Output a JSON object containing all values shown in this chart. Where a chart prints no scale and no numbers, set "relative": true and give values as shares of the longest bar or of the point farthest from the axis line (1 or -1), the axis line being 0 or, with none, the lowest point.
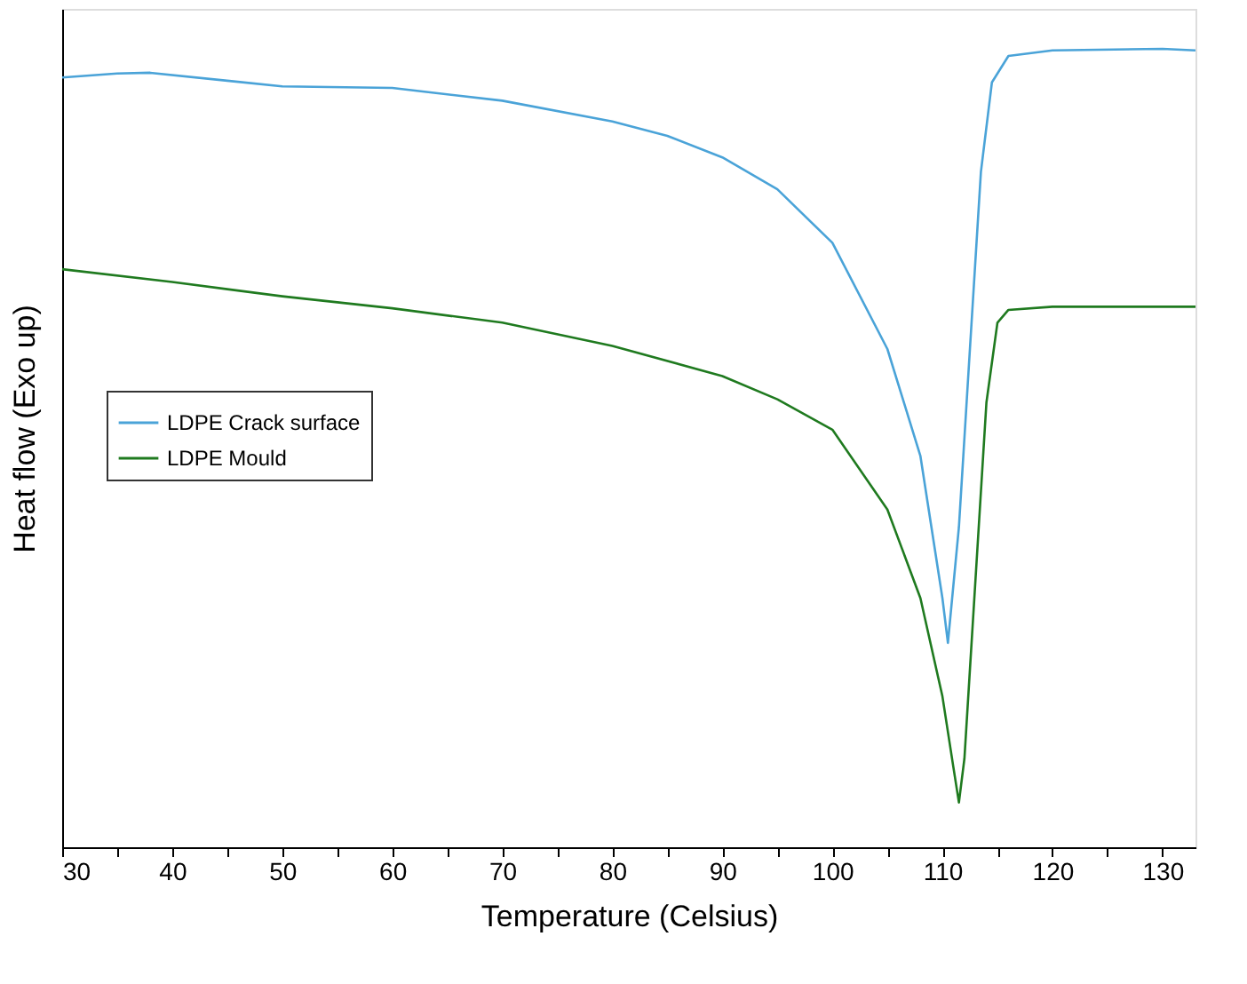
{
  "chart_data": {
    "type": "line",
    "relative": true,
    "xlabel": "Temperature (Celsius)",
    "ylabel": "Heat flow (Exo up)",
    "xlim": [
      30,
      133
    ],
    "xticks": [
      30,
      {
        "value": 35,
        "label": null
      },
      40,
      {
        "value": 45,
        "label": null
      },
      50,
      {
        "value": 55,
        "label": null
      },
      60,
      {
        "value": 65,
        "label": null
      },
      70,
      {
        "value": 75,
        "label": null
      },
      80,
      {
        "value": 85,
        "label": null
      },
      90,
      {
        "value": 95,
        "label": null
      },
      100,
      {
        "value": 105,
        "label": null
      },
      110,
      {
        "value": 115,
        "label": null
      },
      120,
      {
        "value": 125,
        "label": null
      },
      130
    ],
    "tick_labels": "x",
    "grid": false,
    "legend": "left",
    "line_style": "solid",
    "marker": "none",
    "series": [
      {
        "name": "LDPE Crack surface",
        "color": "#4aa3d8",
        "x": [
          30,
          35,
          38,
          45,
          50,
          60,
          70,
          80,
          85,
          90,
          95,
          100,
          105,
          108,
          110,
          110.5,
          111.5,
          112.5,
          113.5,
          114.5,
          116,
          120,
          130,
          133
        ],
        "values": [
          0.964,
          0.969,
          0.97,
          0.96,
          0.953,
          0.951,
          0.935,
          0.909,
          0.891,
          0.864,
          0.824,
          0.757,
          0.624,
          0.49,
          0.312,
          0.256,
          0.401,
          0.624,
          0.846,
          0.958,
          0.991,
          0.998,
          1.0,
          0.998
        ]
      },
      {
        "name": "LDPE Mould",
        "color": "#1f7a1f",
        "x": [
          30,
          40,
          50,
          60,
          70,
          80,
          90,
          95,
          100,
          105,
          108,
          110,
          111,
          111.5,
          112,
          113,
          114,
          115,
          116,
          120,
          133
        ],
        "values": [
          0.724,
          0.708,
          0.69,
          0.675,
          0.657,
          0.628,
          0.59,
          0.561,
          0.523,
          0.423,
          0.312,
          0.189,
          0.1,
          0.056,
          0.111,
          0.334,
          0.557,
          0.657,
          0.673,
          0.677,
          0.677
        ]
      }
    ]
  }
}
